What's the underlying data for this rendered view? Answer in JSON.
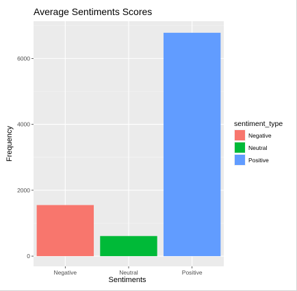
{
  "chart_data": {
    "type": "bar",
    "title": "Average Sentiments Scores",
    "xlabel": "Sentiments",
    "ylabel": "Frequency",
    "categories": [
      "Negative",
      "Neutral",
      "Positive"
    ],
    "values": [
      1550,
      610,
      6780
    ],
    "ylim": [
      -310,
      7130
    ],
    "yticks": [
      0,
      2000,
      4000,
      6000
    ],
    "ytick_labels": [
      "0",
      "2000",
      "4000",
      "6000"
    ],
    "grid": true,
    "legend": {
      "title": "sentiment_type",
      "placement": "right",
      "entries": [
        "Negative",
        "Neutral",
        "Positive"
      ]
    },
    "colors": {
      "Negative": "#f8766d",
      "Neutral": "#00ba38",
      "Positive": "#619cff",
      "panel_background": "#ebebeb",
      "grid_major": "#ffffff"
    }
  }
}
